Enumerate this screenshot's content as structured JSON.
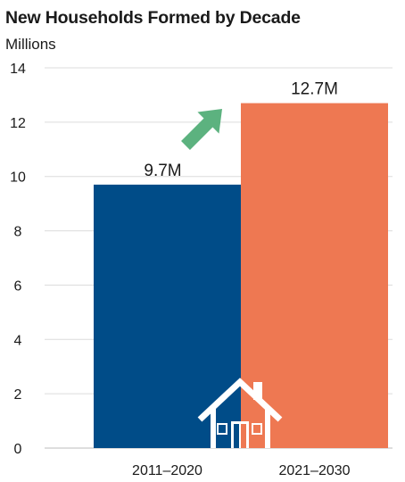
{
  "colors": {
    "series_2011": "#004c88",
    "series_2021": "#ee7852",
    "arrow": "#5cb27f",
    "grid": "#dcdcdc",
    "axis": "#bcbcbc",
    "house_outline": "#ffffff"
  },
  "icons": [
    "growth-arrow-icon",
    "house-icon"
  ],
  "chart_data": {
    "type": "bar",
    "title": "New Households Formed by Decade",
    "subtitle": "Millions",
    "xlabel": "",
    "ylabel": "",
    "categories": [
      "2011–2020",
      "2021–2030"
    ],
    "values": [
      9.7,
      12.7
    ],
    "data_labels": [
      "9.7M",
      "12.7M"
    ],
    "ylim": [
      0,
      14
    ],
    "yticks": [
      0,
      2,
      4,
      6,
      8,
      10,
      12,
      14
    ],
    "ytick_labels": [
      "0",
      "2",
      "4",
      "6",
      "8",
      "10",
      "12",
      "14"
    ],
    "grid": true,
    "legend": "none"
  }
}
